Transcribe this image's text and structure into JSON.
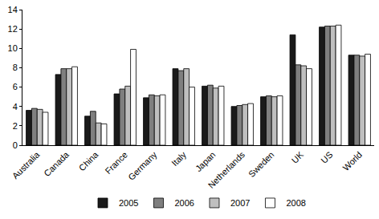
{
  "chart_data": {
    "type": "bar",
    "categories": [
      "Australia",
      "Canada",
      "China",
      "France",
      "Germany",
      "Italy",
      "Japan",
      "Netherlands",
      "Sweden",
      "UK",
      "US",
      "World"
    ],
    "series": [
      {
        "name": "2005",
        "color": "#1a1a1a",
        "values": [
          3.6,
          7.3,
          3.0,
          5.3,
          4.9,
          7.9,
          6.1,
          4.0,
          5.0,
          11.4,
          12.2,
          9.3
        ]
      },
      {
        "name": "2006",
        "color": "#7f7f7f",
        "values": [
          3.8,
          7.9,
          3.5,
          5.8,
          5.2,
          7.7,
          6.2,
          4.1,
          5.1,
          8.3,
          12.3,
          9.3
        ]
      },
      {
        "name": "2007",
        "color": "#bfbfbf",
        "values": [
          3.7,
          7.9,
          2.3,
          6.1,
          5.1,
          7.9,
          5.9,
          4.2,
          5.0,
          8.2,
          12.3,
          9.2
        ]
      },
      {
        "name": "2008",
        "color": "#ffffff",
        "values": [
          3.4,
          8.1,
          2.2,
          9.9,
          5.2,
          6.0,
          6.1,
          4.3,
          5.1,
          7.9,
          12.4,
          9.4
        ]
      }
    ],
    "ylim": [
      0,
      14
    ],
    "yticks": [
      0,
      2,
      4,
      6,
      8,
      10,
      12,
      14
    ],
    "grid": false,
    "legend": "bottom"
  }
}
